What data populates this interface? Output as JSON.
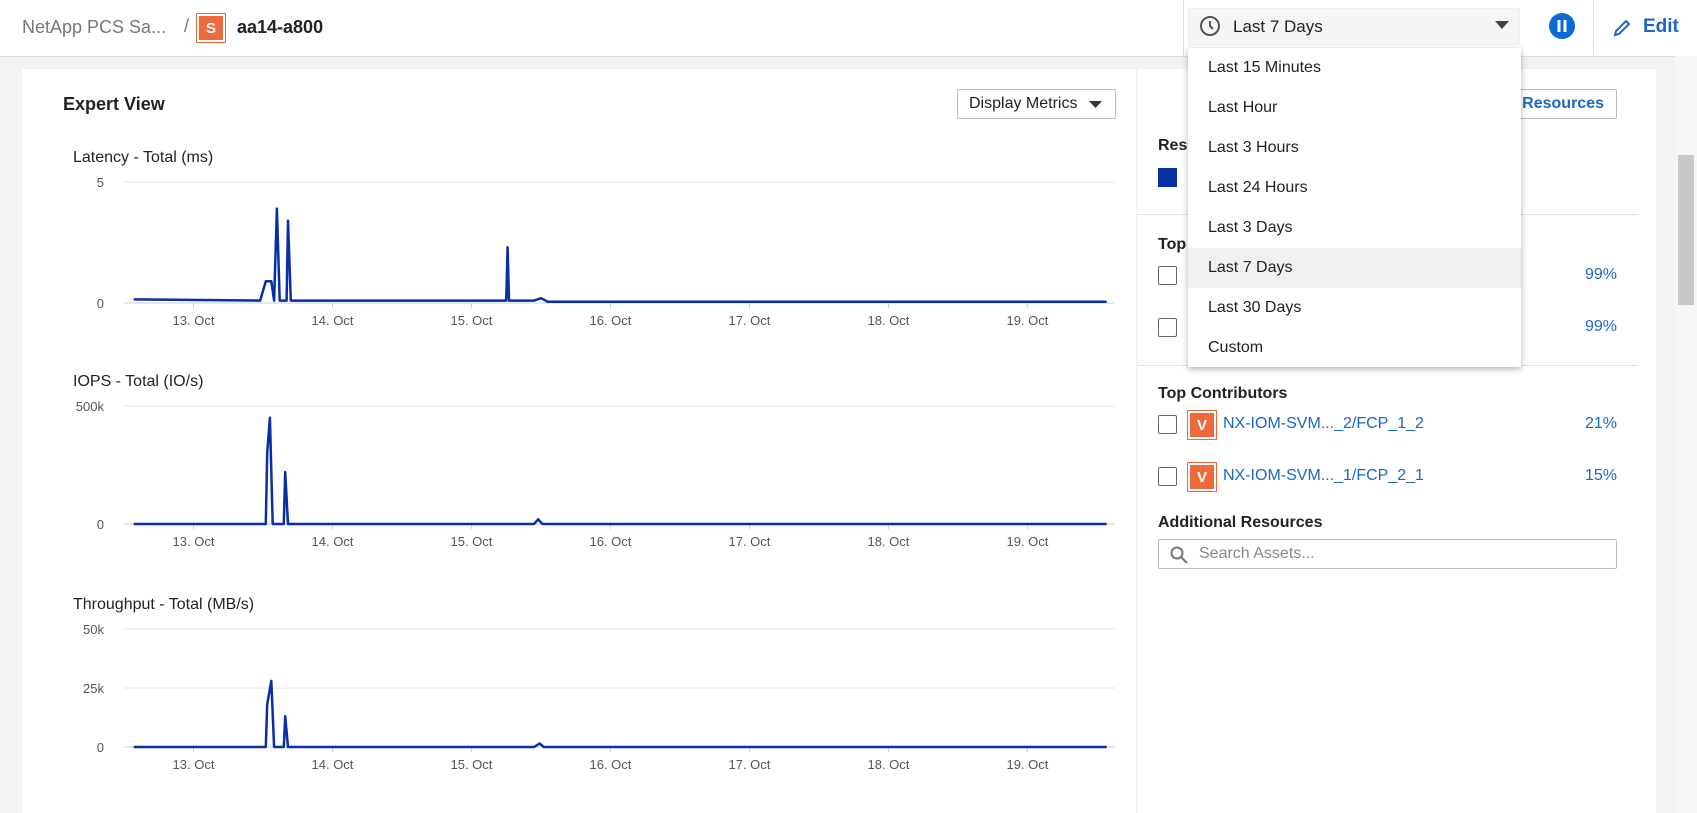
{
  "header": {
    "breadcrumb": "NetApp PCS Sa...",
    "separator": "/",
    "icon": "S",
    "title": "aa14-a800",
    "time_range": "Last 7 Days",
    "edit": "Edit"
  },
  "time_menu": {
    "options": [
      "Last 15 Minutes",
      "Last Hour",
      "Last 3 Hours",
      "Last 24 Hours",
      "Last 3 Days",
      "Last 7 Days",
      "Last 30 Days",
      "Custom"
    ],
    "selected": 5
  },
  "expert_view": {
    "title": "Expert View",
    "display_metrics": "Display Metrics"
  },
  "charts": [
    {
      "type": "line",
      "title": "Latency - Total (ms)",
      "xlim": [
        12.5,
        19.63
      ],
      "ylim": [
        0,
        5
      ],
      "yticks": [
        0,
        5
      ],
      "xticks": [
        {
          "value": 13,
          "label": "13. Oct"
        },
        {
          "value": 14,
          "label": "14. Oct"
        },
        {
          "value": 15,
          "label": "15. Oct"
        },
        {
          "value": 16,
          "label": "16. Oct"
        },
        {
          "value": 17,
          "label": "17. Oct"
        },
        {
          "value": 18,
          "label": "18. Oct"
        },
        {
          "value": 19,
          "label": "19. Oct"
        }
      ],
      "series": {
        "color": "#0a2ea4",
        "x": [
          12.57,
          13.48,
          13.52,
          13.56,
          13.58,
          13.6,
          13.62,
          13.67,
          13.68,
          13.7,
          15.25,
          15.26,
          15.27,
          15.45,
          15.5,
          15.55,
          19.57
        ],
        "values": [
          0.15,
          0.1,
          0.9,
          0.9,
          0.1,
          3.9,
          0.1,
          0.1,
          3.4,
          0.1,
          0.1,
          2.3,
          0.1,
          0.1,
          0.2,
          0.05,
          0.05
        ]
      }
    },
    {
      "type": "line",
      "title": "IOPS - Total (IO/s)",
      "xlim": [
        12.5,
        19.63
      ],
      "ylim": [
        0,
        500000
      ],
      "yticks": [
        0,
        {
          "value": 500000,
          "label": "500k"
        }
      ],
      "xticks": [
        {
          "value": 13,
          "label": "13. Oct"
        },
        {
          "value": 14,
          "label": "14. Oct"
        },
        {
          "value": 15,
          "label": "15. Oct"
        },
        {
          "value": 16,
          "label": "16. Oct"
        },
        {
          "value": 17,
          "label": "17. Oct"
        },
        {
          "value": 18,
          "label": "18. Oct"
        },
        {
          "value": 19,
          "label": "19. Oct"
        }
      ],
      "series": {
        "color": "#0a2ea4",
        "x": [
          12.57,
          13.52,
          13.53,
          13.55,
          13.57,
          13.65,
          13.66,
          13.68,
          15.45,
          15.48,
          15.51,
          19.57
        ],
        "values": [
          0,
          0,
          300000,
          450000,
          0,
          0,
          220000,
          0,
          0,
          20000,
          0,
          0
        ]
      }
    },
    {
      "type": "line",
      "title": "Throughput - Total (MB/s)",
      "xlim": [
        12.5,
        19.63
      ],
      "ylim": [
        0,
        50000
      ],
      "yticks": [
        0,
        {
          "value": 25000,
          "label": "25k"
        },
        {
          "value": 50000,
          "label": "50k"
        }
      ],
      "xticks": [
        {
          "value": 13,
          "label": "13. Oct"
        },
        {
          "value": 14,
          "label": "14. Oct"
        },
        {
          "value": 15,
          "label": "15. Oct"
        },
        {
          "value": 16,
          "label": "16. Oct"
        },
        {
          "value": 17,
          "label": "17. Oct"
        },
        {
          "value": 18,
          "label": "18. Oct"
        },
        {
          "value": 19,
          "label": "19. Oct"
        }
      ],
      "series": {
        "color": "#0a2ea4",
        "x": [
          12.57,
          13.52,
          13.53,
          13.56,
          13.58,
          13.65,
          13.66,
          13.68,
          15.45,
          15.49,
          15.52,
          19.57
        ],
        "values": [
          0,
          0,
          18000,
          28000,
          0,
          0,
          13000,
          0,
          0,
          1500,
          0,
          0
        ]
      }
    }
  ],
  "side": {
    "resources_button": "e Resources",
    "resources_heading": "Reso",
    "top_heading": "Top",
    "top_items": [
      "99%",
      "99%"
    ],
    "contributors_title": "Top Contributors",
    "contributors": [
      {
        "icon": "V",
        "name": "NX-IOM-SVM..._2/FCP_1_2",
        "pct": "21%"
      },
      {
        "icon": "V",
        "name": "NX-IOM-SVM..._1/FCP_2_1",
        "pct": "15%"
      }
    ],
    "additional_title": "Additional Resources",
    "search_placeholder": "Search Assets..."
  }
}
